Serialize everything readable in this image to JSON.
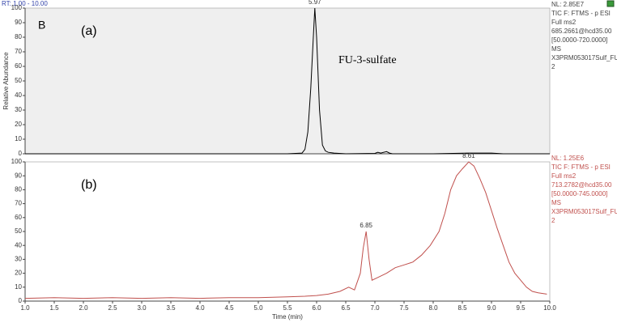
{
  "header": "RT: 1.00 - 10.00",
  "chart_data": [
    {
      "type": "line",
      "panel_label": "B",
      "subtitle": "(a)",
      "annotation": "FU-3-sulfate",
      "y_label": "Relative Abundance",
      "color": "#000000",
      "background": "#efefef",
      "info_color": "#444444",
      "info_lines": [
        "NL: 2.85E7",
        "TIC F: FTMS - p ESI",
        "Full ms2",
        "685.2661@hcd35.00",
        "[50.0000-720.0000]",
        "MS",
        "X3PRM053017Sulf_FU",
        "2"
      ],
      "x": [
        1.0,
        5.5,
        5.75,
        5.8,
        5.85,
        5.9,
        5.95,
        5.97,
        6.0,
        6.05,
        6.1,
        6.15,
        6.2,
        6.3,
        6.5,
        7.0,
        7.05,
        7.1,
        7.2,
        7.25,
        7.3,
        8.0,
        8.6,
        9.0,
        9.2,
        10.0
      ],
      "values": [
        0,
        0,
        0.5,
        3,
        15,
        45,
        85,
        100,
        80,
        30,
        6,
        2,
        1,
        0.5,
        0,
        0.3,
        1,
        0.5,
        1.5,
        0.5,
        0,
        0,
        0.5,
        0.5,
        0,
        0
      ],
      "peak_labels": [
        5.97
      ],
      "xlim": [
        1,
        10
      ],
      "ylim": [
        0,
        100
      ],
      "yticks": [
        0,
        10,
        20,
        30,
        40,
        50,
        60,
        70,
        80,
        90,
        100
      ]
    },
    {
      "type": "line",
      "subtitle": "(b)",
      "x_label": "Time (min)",
      "color": "#c0504d",
      "background": "#ffffff",
      "info_color": "#c0504d",
      "info_lines": [
        "NL: 1.25E6",
        "TIC F: FTMS - p ESI",
        "Full ms2",
        "713.2782@hcd35.00",
        "[50.0000-745.0000]",
        "MS",
        "X3PRM053017Sulf_FU",
        "2"
      ],
      "x": [
        1.0,
        1.5,
        2.0,
        2.5,
        3.0,
        3.5,
        4.0,
        4.5,
        5.0,
        5.5,
        5.8,
        6.0,
        6.2,
        6.4,
        6.55,
        6.65,
        6.75,
        6.8,
        6.85,
        6.9,
        6.95,
        7.05,
        7.2,
        7.35,
        7.5,
        7.65,
        7.8,
        7.95,
        8.1,
        8.2,
        8.3,
        8.4,
        8.5,
        8.61,
        8.7,
        8.8,
        8.9,
        9.0,
        9.1,
        9.2,
        9.3,
        9.4,
        9.5,
        9.6,
        9.7,
        9.8,
        9.95
      ],
      "values": [
        2,
        2.5,
        2,
        2.5,
        2,
        2.5,
        2,
        2.5,
        2.5,
        3,
        3.5,
        4,
        5,
        7,
        10,
        8,
        20,
        38,
        50,
        30,
        15,
        17,
        20,
        24,
        26,
        28,
        33,
        40,
        50,
        63,
        80,
        90,
        95,
        100,
        97,
        88,
        78,
        65,
        52,
        40,
        28,
        20,
        15,
        10,
        7,
        6,
        5
      ],
      "peak_labels": [
        6.85,
        8.61
      ],
      "xlim": [
        1,
        10
      ],
      "ylim": [
        0,
        100
      ],
      "yticks": [
        0,
        10,
        20,
        30,
        40,
        50,
        60,
        70,
        80,
        90,
        100
      ],
      "xticks": [
        {
          "value": 1,
          "label": "1.0"
        },
        {
          "value": 1.5,
          "label": "1.5"
        },
        {
          "value": 2,
          "label": "2.0"
        },
        {
          "value": 2.5,
          "label": "2.5"
        },
        {
          "value": 3,
          "label": "3.0"
        },
        {
          "value": 3.5,
          "label": "3.5"
        },
        {
          "value": 4,
          "label": "4.0"
        },
        {
          "value": 4.5,
          "label": "4.5"
        },
        {
          "value": 5,
          "label": "5.0"
        },
        {
          "value": 5.5,
          "label": "5.5"
        },
        {
          "value": 6,
          "label": "6.0"
        },
        {
          "value": 6.5,
          "label": "6.5"
        },
        {
          "value": 7,
          "label": "7.0"
        },
        {
          "value": 7.5,
          "label": "7.5"
        },
        {
          "value": 8,
          "label": "8.0"
        },
        {
          "value": 8.5,
          "label": "8.5"
        },
        {
          "value": 9,
          "label": "9.0"
        },
        {
          "value": 9.5,
          "label": "9.5"
        },
        {
          "value": 10,
          "label": "10.0"
        }
      ]
    }
  ]
}
